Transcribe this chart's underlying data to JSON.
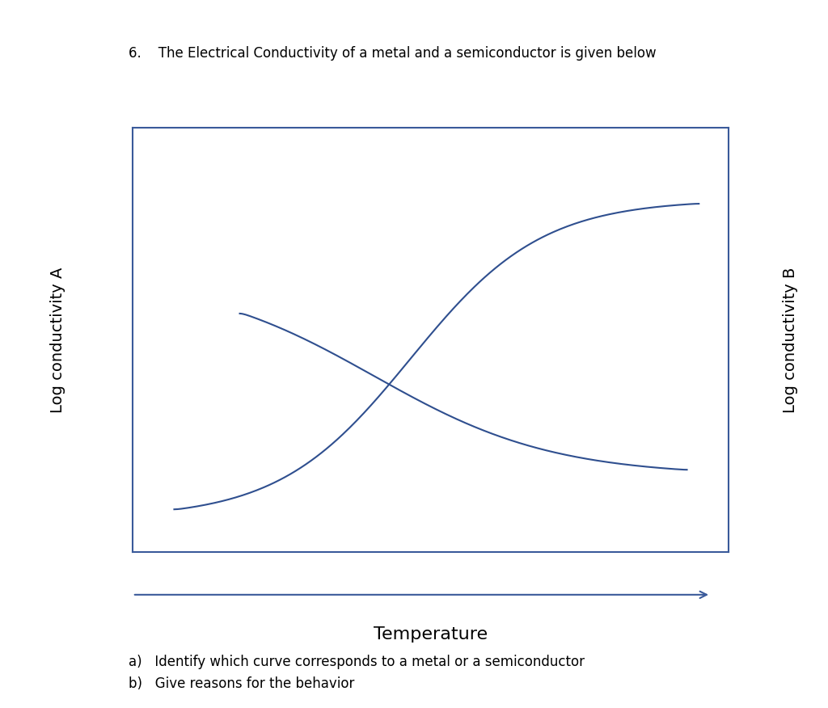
{
  "title": "6.    The Electrical Conductivity of a metal and a semiconductor is given below",
  "left_ylabel": "Log conductivity A",
  "right_ylabel": "Log conductivity B",
  "xlabel": "Temperature",
  "subtitle_a": "a)   Identify which curve corresponds to a metal or a semiconductor",
  "subtitle_b": "b)   Give reasons for the behavior",
  "curve_color": "#2f4f8f",
  "background_color": "#ffffff",
  "box_color": "#3a5a9a",
  "arrow_color": "#3a5a9a"
}
